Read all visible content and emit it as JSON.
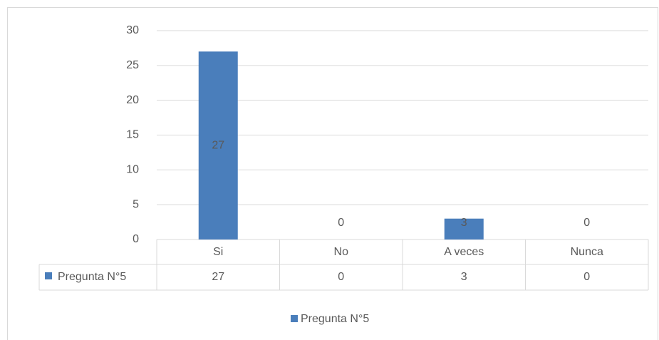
{
  "chart_data": {
    "type": "bar",
    "categories": [
      "Si",
      "No",
      "A veces",
      "Nunca"
    ],
    "series": [
      {
        "name": "Pregunta N°5",
        "color": "#4a7ebb",
        "values": [
          27,
          0,
          3,
          0
        ]
      }
    ],
    "ylim": [
      0,
      30
    ],
    "yticks": [
      0,
      5,
      10,
      15,
      20,
      25,
      30
    ],
    "grid": true,
    "legend": "bottom"
  }
}
